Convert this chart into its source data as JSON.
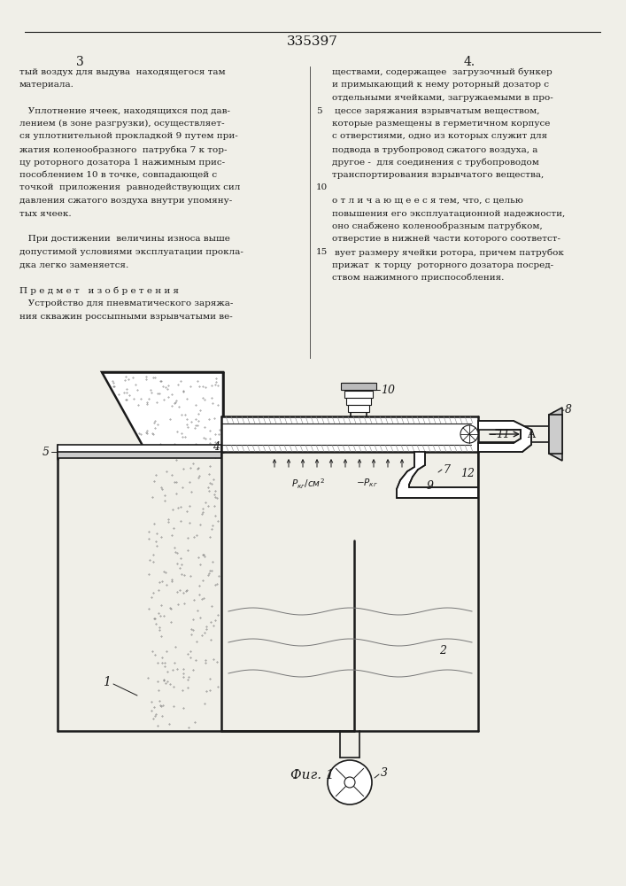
{
  "patent_number": "335397",
  "page_numbers": [
    "3",
    "4"
  ],
  "left_col_text": [
    "тый воздух для выдува  находящегося там",
    "материала.",
    "",
    "   Уплотнение ячеек, находящихся под дав-",
    "лением (в зоне разгрузки), осуществляет-",
    "ся уплотнительной прокладкой 9 путем при-",
    "жатия коленообразного  патрубка 7 к тор-",
    "цу роторного дозатора 1 нажимным прис-",
    "пособлением 10 в точке, совпадающей с",
    "точкой  приложения  равнодействующих сил",
    "давления сжатого воздуха внутри упомяну-",
    "тых ячеек.",
    "",
    "   При достижении  величины износа выше",
    "допустимой условиями эксплуатации прокла-",
    "дка легко заменяется.",
    "",
    "П р е д м е т   и з о б р е т е н и я",
    "   Устройство для пневматического заряжа-",
    "ния скважин россыпными взрывчатыми ве-"
  ],
  "right_col_text": [
    "ществами, содержащее  загрузочный бункер",
    "и примыкающий к нему роторный дозатор с",
    "отдельными ячейками, загружаемыми в про-",
    "цессе заряжания взрывчатым веществом,",
    "которые размещены в герметичном корпусе",
    "с отверстиями, одно из которых служит для",
    "подвода в трубопровод сжатого воздуха, а",
    "другое -  для соединения с трубопроводом",
    "транспортирования взрывчатого вещества,",
    "",
    "о т л и ч а ю щ е е с я тем, что, с целью",
    "повышения его эксплуатационной надежности,",
    "оно снабжено коленообразным патрубком,",
    "отверстие в нижней части которого соответст-",
    "вует размеру ячейки ротора, причем патрубок",
    "прижат  к торцу  роторного дозатора посред-",
    "ством нажимного приспособления."
  ],
  "fig_caption": "Фиг. 1",
  "bg_color": "#f0efe8",
  "line_color": "#1a1a1a",
  "text_color": "#1a1a1a"
}
